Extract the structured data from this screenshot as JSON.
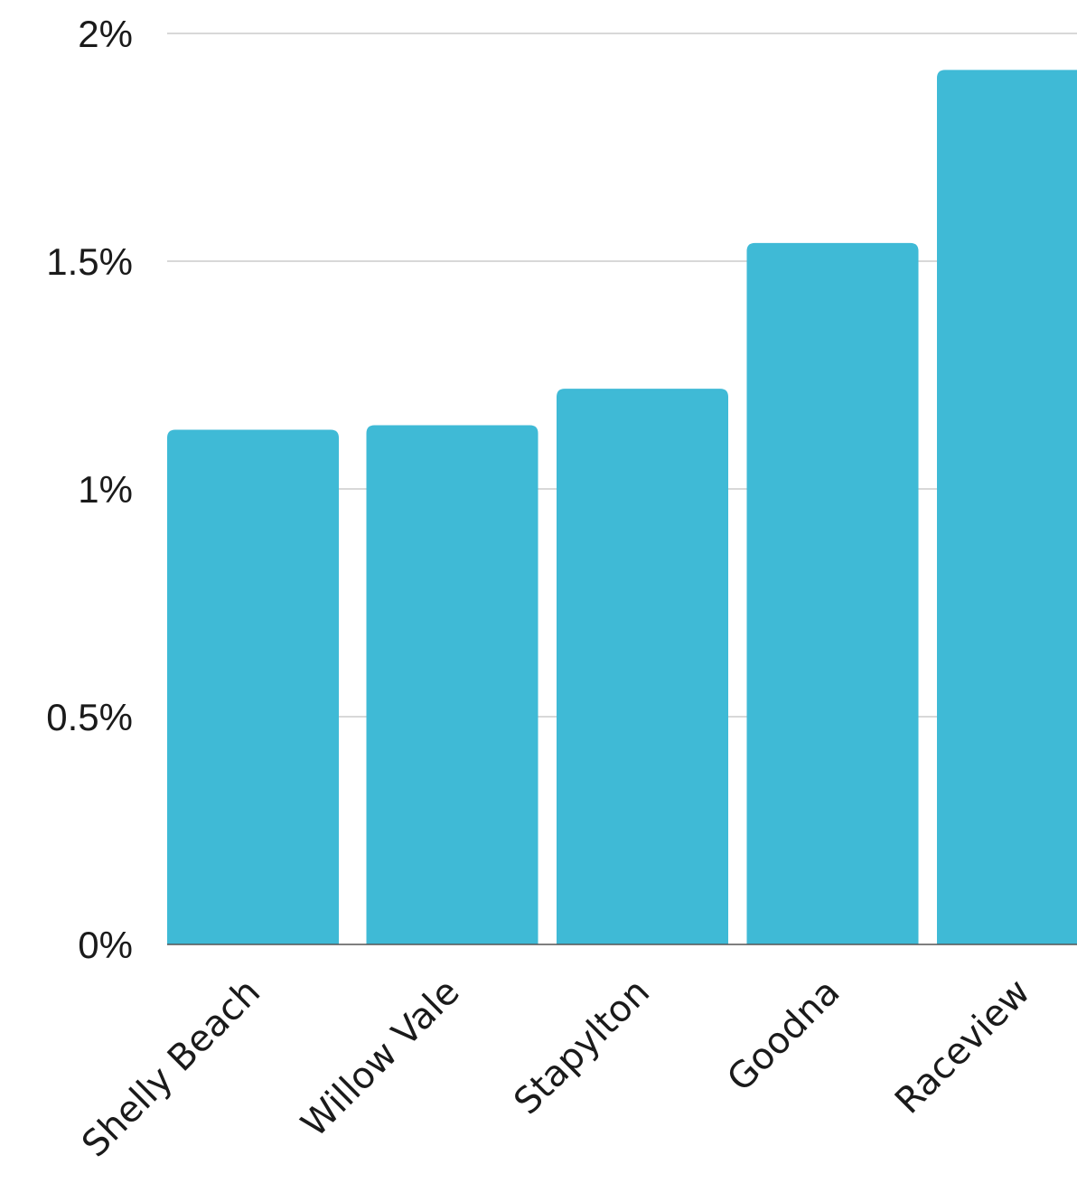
{
  "chart_data": {
    "type": "bar",
    "categories": [
      "Shelly Beach",
      "Willow Vale",
      "Stapylton",
      "Goodna",
      "Raceview"
    ],
    "values": [
      1.13,
      1.14,
      1.22,
      1.54,
      1.92
    ],
    "ylim": [
      0,
      2
    ],
    "yticks": [
      {
        "value": 0,
        "label": "0%"
      },
      {
        "value": 0.5,
        "label": "0.5%"
      },
      {
        "value": 1,
        "label": "1%"
      },
      {
        "value": 1.5,
        "label": "1.5%"
      },
      {
        "value": 2,
        "label": "2%"
      }
    ],
    "title": "",
    "xlabel": "",
    "ylabel": "",
    "grid": true,
    "bar_color": "#3fbad6"
  }
}
